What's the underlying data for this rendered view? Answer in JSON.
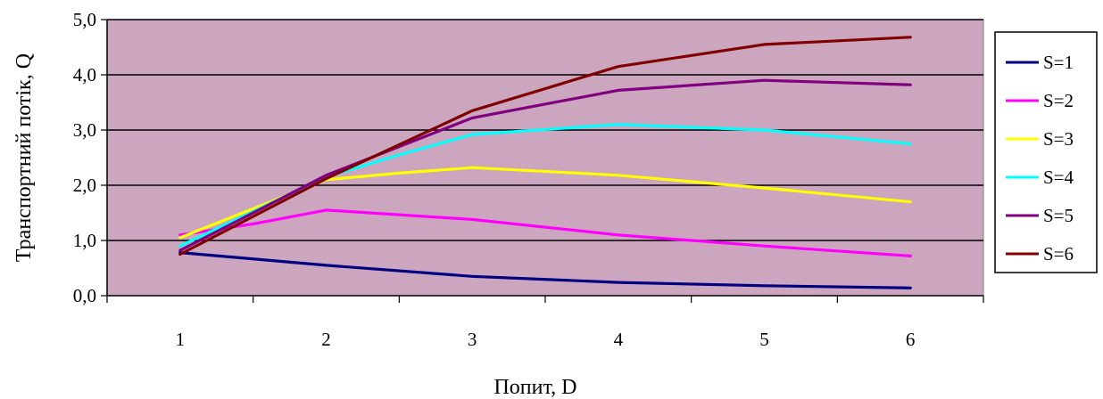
{
  "chart_data": {
    "type": "line",
    "xlabel": "Попит, D",
    "ylabel": "Транспортний потік, Q",
    "x": [
      1,
      2,
      3,
      4,
      5,
      6
    ],
    "x_tick_labels": [
      "1",
      "2",
      "3",
      "4",
      "5",
      "6"
    ],
    "ylim": [
      0,
      5
    ],
    "y_tick_labels": [
      "0,0",
      "1,0",
      "2,0",
      "3,0",
      "4,0",
      "5,0"
    ],
    "grid": "horizontal",
    "legend_position": "right",
    "plot_background": "#cca6bf",
    "series": [
      {
        "name": "S=1",
        "color": "#000080",
        "x": [
          1,
          2,
          3,
          4,
          5,
          6
        ],
        "values": [
          0.78,
          0.55,
          0.35,
          0.24,
          0.18,
          0.14
        ]
      },
      {
        "name": "S=2",
        "color": "#ff00ff",
        "x": [
          1,
          1.5,
          2,
          3,
          4,
          5,
          6
        ],
        "values": [
          1.1,
          1.3,
          1.55,
          1.38,
          1.1,
          0.9,
          0.72
        ]
      },
      {
        "name": "S=3",
        "color": "#ffff00",
        "x": [
          1,
          2,
          2.5,
          3,
          4,
          5,
          6
        ],
        "values": [
          1.05,
          2.1,
          2.22,
          2.32,
          2.18,
          1.95,
          1.7
        ]
      },
      {
        "name": "S=4",
        "color": "#00ffff",
        "x": [
          1,
          2,
          2.5,
          3,
          4,
          5,
          6
        ],
        "values": [
          0.9,
          2.15,
          2.55,
          2.92,
          3.1,
          3.0,
          2.75
        ]
      },
      {
        "name": "S=5",
        "color": "#800080",
        "x": [
          1,
          2,
          3,
          4,
          5,
          6
        ],
        "values": [
          0.82,
          2.18,
          3.22,
          3.72,
          3.9,
          3.82
        ]
      },
      {
        "name": "S=6",
        "color": "#800000",
        "x": [
          1,
          2,
          3,
          4,
          5,
          6
        ],
        "values": [
          0.75,
          2.12,
          3.35,
          4.15,
          4.55,
          4.68
        ]
      }
    ]
  }
}
